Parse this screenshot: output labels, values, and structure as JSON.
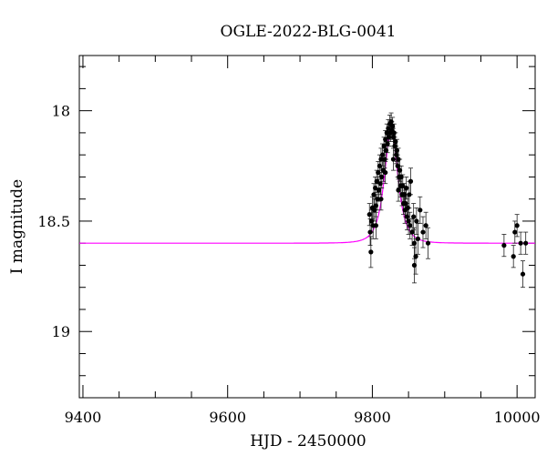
{
  "chart_data": {
    "type": "scatter",
    "title": "OGLE-2022-BLG-0041",
    "xlabel": "HJD - 2450000",
    "ylabel": "I magnitude",
    "xlim": [
      9395,
      10025
    ],
    "ylim": [
      19.3,
      17.75
    ],
    "y_inverted": true,
    "grid": false,
    "x_ticks": [
      9400,
      9600,
      9800,
      10000
    ],
    "x_tick_labels": [
      "9400",
      "9600",
      "9800",
      "10000"
    ],
    "y_ticks": [
      18,
      18.5,
      19
    ],
    "y_tick_labels": [
      "18",
      "18.5",
      "19"
    ],
    "colors": {
      "points": "#000000",
      "model": "#ff00ff"
    },
    "model": {
      "name": "",
      "t0": 9826,
      "baseline_mag": 18.6,
      "peak_mag": 18.08,
      "tE": 13,
      "color": "#ff00ff"
    },
    "series": [
      {
        "type": "errorbar",
        "points": [
          [
            9796,
            18.47,
            0.05
          ],
          [
            9797,
            18.55,
            0.06
          ],
          [
            9798,
            18.64,
            0.07
          ],
          [
            9799,
            18.5,
            0.05
          ],
          [
            9800,
            18.44,
            0.05
          ],
          [
            9801,
            18.52,
            0.06
          ],
          [
            9802,
            18.38,
            0.05
          ],
          [
            9803,
            18.45,
            0.05
          ],
          [
            9804,
            18.35,
            0.05
          ],
          [
            9805,
            18.43,
            0.05
          ],
          [
            9806,
            18.32,
            0.05
          ],
          [
            9807,
            18.4,
            0.05
          ],
          [
            9808,
            18.28,
            0.05
          ],
          [
            9809,
            18.36,
            0.05
          ],
          [
            9810,
            18.25,
            0.05
          ],
          [
            9811,
            18.33,
            0.05
          ],
          [
            9812,
            18.22,
            0.05
          ],
          [
            9813,
            18.3,
            0.05
          ],
          [
            9814,
            18.2,
            0.05
          ],
          [
            9815,
            18.27,
            0.05
          ],
          [
            9816,
            18.16,
            0.04
          ],
          [
            9817,
            18.22,
            0.04
          ],
          [
            9818,
            18.13,
            0.04
          ],
          [
            9819,
            18.18,
            0.04
          ],
          [
            9820,
            18.1,
            0.04
          ],
          [
            9821,
            18.15,
            0.04
          ],
          [
            9822,
            18.08,
            0.04
          ],
          [
            9823,
            18.12,
            0.04
          ],
          [
            9824,
            18.06,
            0.04
          ],
          [
            9825,
            18.1,
            0.04
          ],
          [
            9826,
            18.05,
            0.04
          ],
          [
            9827,
            18.09,
            0.04
          ],
          [
            9828,
            18.07,
            0.04
          ],
          [
            9829,
            18.12,
            0.04
          ],
          [
            9830,
            18.1,
            0.04
          ],
          [
            9831,
            18.16,
            0.04
          ],
          [
            9832,
            18.14,
            0.04
          ],
          [
            9833,
            18.2,
            0.04
          ],
          [
            9834,
            18.18,
            0.05
          ],
          [
            9835,
            18.25,
            0.05
          ],
          [
            9836,
            18.22,
            0.05
          ],
          [
            9837,
            18.3,
            0.05
          ],
          [
            9838,
            18.27,
            0.05
          ],
          [
            9839,
            18.34,
            0.05
          ],
          [
            9840,
            18.3,
            0.05
          ],
          [
            9841,
            18.38,
            0.05
          ],
          [
            9842,
            18.34,
            0.05
          ],
          [
            9843,
            18.42,
            0.05
          ],
          [
            9844,
            18.38,
            0.05
          ],
          [
            9845,
            18.45,
            0.06
          ],
          [
            9846,
            18.42,
            0.06
          ],
          [
            9847,
            18.35,
            0.05
          ],
          [
            9848,
            18.48,
            0.06
          ],
          [
            9849,
            18.44,
            0.06
          ],
          [
            9850,
            18.5,
            0.06
          ],
          [
            9851,
            18.38,
            0.06
          ],
          [
            9852,
            18.52,
            0.06
          ],
          [
            9853,
            18.32,
            0.06
          ],
          [
            9855,
            18.55,
            0.06
          ],
          [
            9857,
            18.48,
            0.06
          ],
          [
            9858,
            18.6,
            0.07
          ],
          [
            9860,
            18.66,
            0.08
          ],
          [
            9861,
            18.5,
            0.06
          ],
          [
            9863,
            18.58,
            0.07
          ],
          [
            9866,
            18.45,
            0.06
          ],
          [
            9870,
            18.55,
            0.07
          ],
          [
            9874,
            18.52,
            0.06
          ],
          [
            9877,
            18.6,
            0.07
          ],
          [
            9858,
            18.7,
            0.08
          ],
          [
            9836,
            18.36,
            0.05
          ],
          [
            9829,
            18.22,
            0.05
          ],
          [
            9818,
            18.28,
            0.05
          ],
          [
            9805,
            18.52,
            0.06
          ],
          [
            9812,
            18.4,
            0.05
          ],
          [
            9982,
            18.61,
            0.05
          ],
          [
            9995,
            18.66,
            0.05
          ],
          [
            9997,
            18.55,
            0.05
          ],
          [
            10000,
            18.52,
            0.05
          ],
          [
            10005,
            18.6,
            0.05
          ],
          [
            10008,
            18.74,
            0.06
          ],
          [
            10012,
            18.6,
            0.05
          ]
        ]
      }
    ]
  }
}
